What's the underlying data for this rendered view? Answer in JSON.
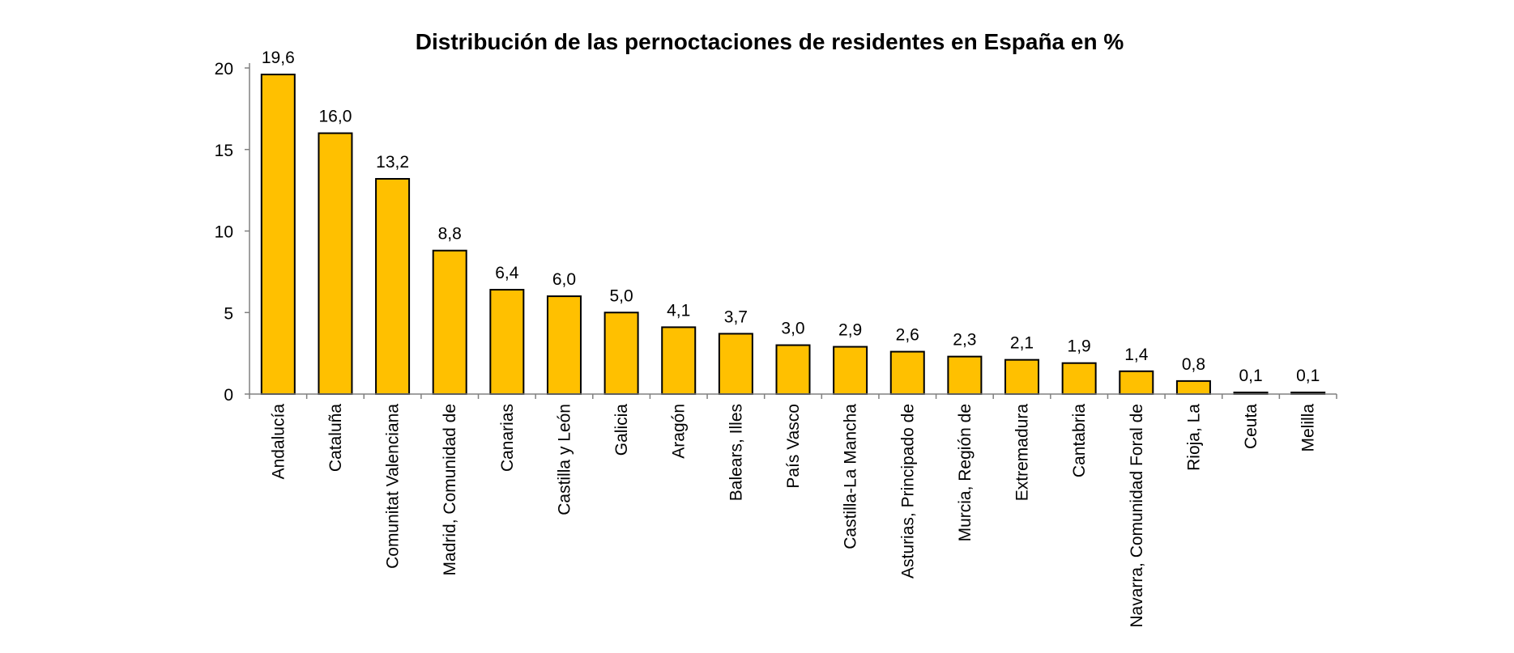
{
  "chart_data": {
    "type": "bar",
    "title": "Distribución de las pernoctaciones de residentes en España en %",
    "xlabel": "",
    "ylabel": "",
    "ylim": [
      0,
      20
    ],
    "yticks": [
      "0",
      "5",
      "10",
      "15",
      "20"
    ],
    "grid": false,
    "bar_color": "#FFC000",
    "categories": [
      "Andalucía",
      "Cataluña",
      "Comunitat Valenciana",
      "Madrid, Comunidad de",
      "Canarias",
      "Castilla y León",
      "Galicia",
      "Aragón",
      "Balears, Illes",
      "País Vasco",
      "Castilla-La Mancha",
      "Asturias, Principado de",
      "Murcia, Región de",
      "Extremadura",
      "Cantabria",
      "Navarra, Comunidad Foral de",
      "Rioja, La",
      "Ceuta",
      "Melilla"
    ],
    "values": [
      19.6,
      16.0,
      13.2,
      8.8,
      6.4,
      6.0,
      5.0,
      4.1,
      3.7,
      3.0,
      2.9,
      2.6,
      2.3,
      2.1,
      1.9,
      1.4,
      0.8,
      0.1,
      0.1
    ],
    "value_labels": [
      "19,6",
      "16,0",
      "13,2",
      "8,8",
      "6,4",
      "6,0",
      "5,0",
      "4,1",
      "3,7",
      "3,0",
      "2,9",
      "2,6",
      "2,3",
      "2,1",
      "1,9",
      "1,4",
      "0,8",
      "0,1",
      "0,1"
    ]
  }
}
